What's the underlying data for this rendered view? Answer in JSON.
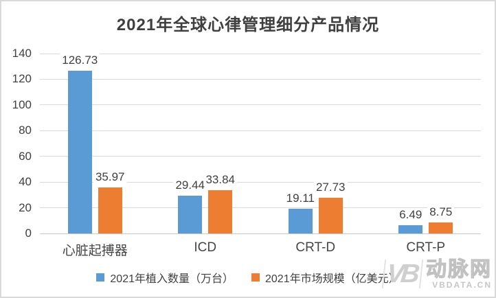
{
  "title": "2021年全球心律管理细分产品情况",
  "chart_data": {
    "type": "bar",
    "title": "2021年全球心律管理细分产品情况",
    "categories": [
      "心脏起搏器",
      "ICD",
      "CRT-D",
      "CRT-P"
    ],
    "series": [
      {
        "name": "2021年植入数量（万台）",
        "color": "#5B9BD5",
        "values": [
          126.73,
          29.44,
          19.11,
          6.49
        ]
      },
      {
        "name": "2021年市场规模（亿美元）",
        "color": "#ED7D31",
        "values": [
          35.97,
          33.84,
          27.73,
          8.75
        ]
      }
    ],
    "xlabel": "",
    "ylabel": "",
    "ylim": [
      0,
      140
    ],
    "yticks": [
      0,
      20,
      40,
      60,
      80,
      100,
      120,
      140
    ],
    "grid": true,
    "legend_position": "bottom"
  },
  "watermark": {
    "logo": "VB",
    "brand": "动脉网",
    "site": "VBDATA.CN"
  },
  "colors": {
    "series_blue": "#5B9BD5",
    "series_orange": "#ED7D31",
    "gridline": "#D9D9D9",
    "axis_baseline": "#C8C8C8",
    "text": "#3F3F3F",
    "watermark_gray": "#C9C9C9"
  }
}
